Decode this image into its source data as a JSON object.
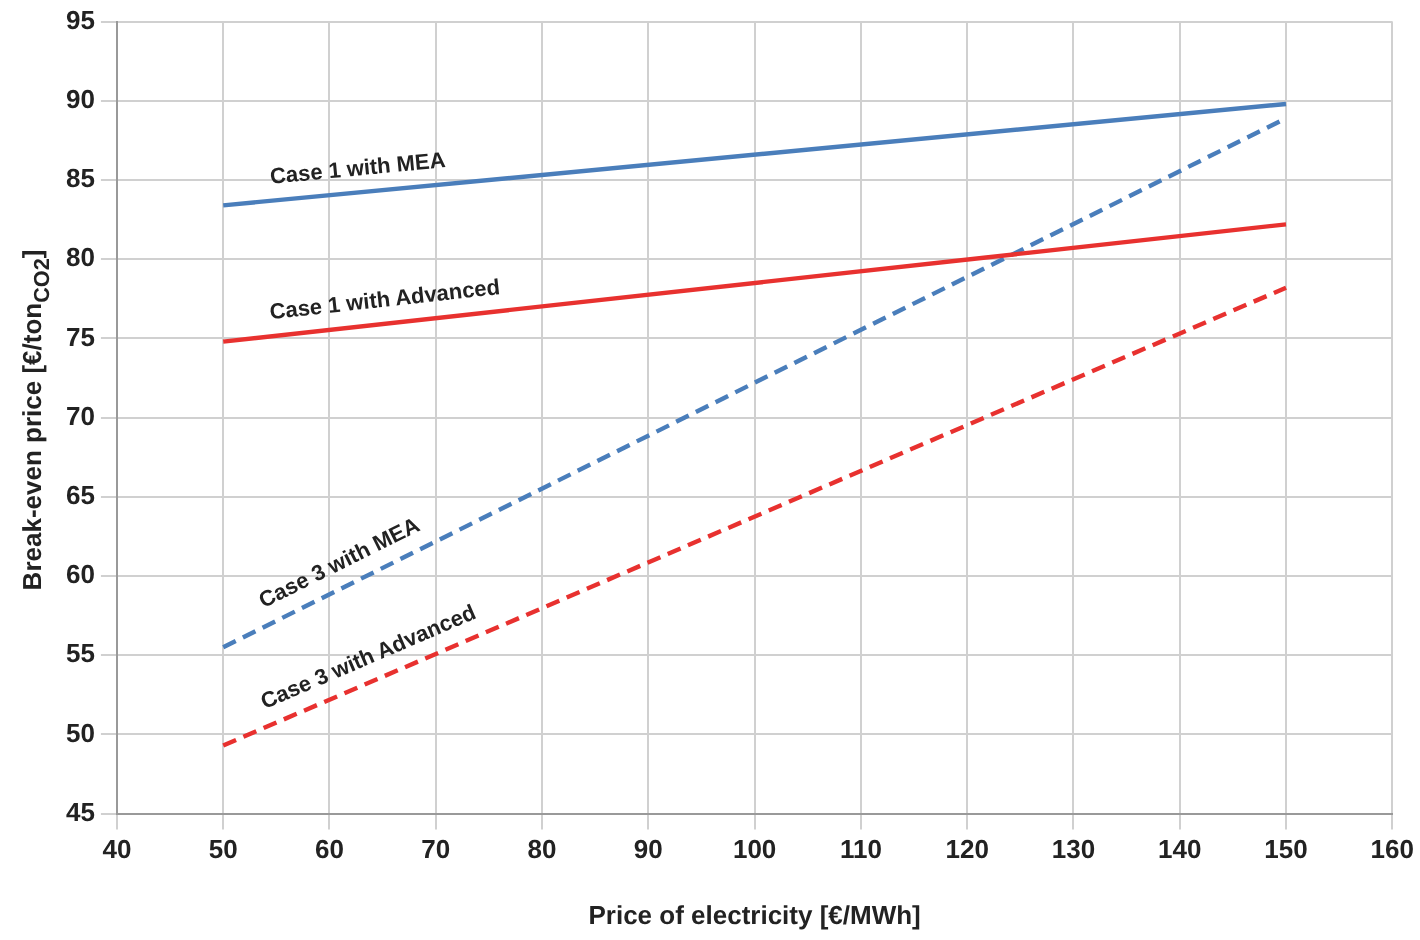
{
  "chart_data": {
    "type": "line",
    "xlabel": "Price of electricity [€/MWh]",
    "ylabel": "Break-even price [€/ton$_{CO2}$]",
    "x": [
      50,
      150
    ],
    "series": [
      {
        "name": "Case 1 with MEA",
        "color": "#4a7ebb",
        "values": [
          83.4,
          89.8
        ],
        "line_style": "solid"
      },
      {
        "name": "Case 1 with Advanced",
        "color": "#e8312f",
        "values": [
          74.8,
          82.2
        ],
        "line_style": "solid"
      },
      {
        "name": "Case 3 with MEA",
        "color": "#4a7ebb",
        "values": [
          55.5,
          88.9
        ],
        "line_style": "dashed"
      },
      {
        "name": "Case 3 with Advanced",
        "color": "#e8312f",
        "values": [
          49.3,
          78.2
        ],
        "line_style": "dashed"
      }
    ],
    "xlim": [
      40,
      160
    ],
    "xticks": [
      40,
      50,
      60,
      70,
      80,
      90,
      100,
      110,
      120,
      130,
      140,
      150,
      160
    ],
    "ylim": [
      45,
      95
    ],
    "yticks": [
      45,
      50,
      55,
      60,
      65,
      70,
      75,
      80,
      85,
      90,
      95
    ],
    "grid": true,
    "legend": false,
    "marker": "none"
  }
}
